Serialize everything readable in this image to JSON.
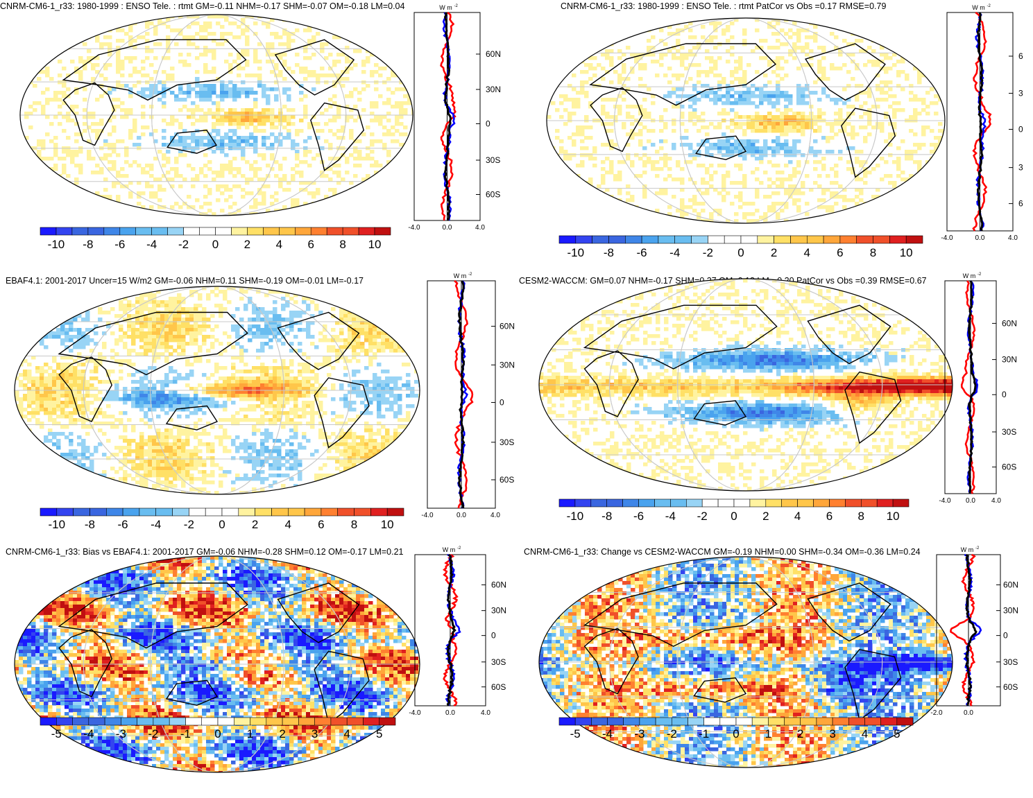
{
  "chart_data": [
    {
      "type": "heatmap",
      "title": "CNRM-CM6-1_r33: 1980-1999 : ENSO Tele. : rtmt GM=-0.11 NHM=-0.17 SHM=-0.07 OM=-0.18 LM=0.04",
      "colorbar_ticks": [
        "-10",
        "-8",
        "-6",
        "-4",
        "-2",
        "0",
        "2",
        "4",
        "6",
        "8",
        "10"
      ],
      "colorbar_range": [
        -10,
        10
      ],
      "zonal_mean": {
        "unit": "W m-2",
        "lat_labels": [
          "60N",
          "30N",
          "0",
          "30S",
          "60S"
        ],
        "x_ticks": [
          "-4.0",
          "0.0",
          "4.0"
        ],
        "xlim": [
          -4,
          4
        ]
      }
    },
    {
      "type": "heatmap",
      "title": "CNRM-CM6-1_r33: 1980-1999 : ENSO Tele. : rtmt PatCor vs Obs =0.17 RMSE=0.79",
      "colorbar_ticks": [
        "-10",
        "-8",
        "-6",
        "-4",
        "-2",
        "0",
        "2",
        "4",
        "6",
        "8",
        "10"
      ],
      "colorbar_range": [
        -10,
        10
      ],
      "zonal_mean": {
        "unit": "W m-2",
        "lat_labels": [
          "6",
          "3",
          "0",
          "3",
          "6"
        ],
        "x_ticks": [
          "-4.0",
          "0.0",
          "4.0"
        ],
        "xlim": [
          -4,
          4
        ]
      }
    },
    {
      "type": "heatmap",
      "title": "EBAF4.1: 2001-2017 Uncer=15 W/m2 GM=-0.06 NHM=0.11 SHM=-0.19 OM=-0.01 LM=-0.17",
      "colorbar_ticks": [
        "-10",
        "-8",
        "-6",
        "-4",
        "-2",
        "0",
        "2",
        "4",
        "6",
        "8",
        "10"
      ],
      "colorbar_range": [
        -10,
        10
      ],
      "zonal_mean": {
        "unit": "W m-2",
        "lat_labels": [
          "60N",
          "30N",
          "0",
          "30S",
          "60S"
        ],
        "x_ticks": [
          "-4.0",
          "0.0",
          "4.0"
        ],
        "xlim": [
          -4,
          4
        ]
      }
    },
    {
      "type": "heatmap",
      "title": "CESM2-WACCM: GM=0.07 NHM=-0.17 SHM=0.27 OM=0.18 LM=-0.20 PatCor vs Obs =0.39 RMSE=0.67",
      "colorbar_ticks": [
        "-10",
        "-8",
        "-6",
        "-4",
        "-2",
        "0",
        "2",
        "4",
        "6",
        "8",
        "10"
      ],
      "colorbar_range": [
        -10,
        10
      ],
      "zonal_mean": {
        "unit": "W m-2",
        "lat_labels": [
          "60N",
          "30N",
          "0",
          "30S",
          "60S"
        ],
        "x_ticks": [
          "-4.0",
          "0.0",
          "4.0"
        ],
        "xlim": [
          -4,
          4
        ]
      }
    },
    {
      "type": "heatmap",
      "title": "CNRM-CM6-1_r33: Bias vs EBAF4.1: 2001-2017 GM=-0.06 NHM=-0.28 SHM=0.12 OM=-0.17 LM=0.21",
      "colorbar_ticks": [
        "-5",
        "-4",
        "-3",
        "-2",
        "-1",
        "0",
        "1",
        "2",
        "3",
        "4",
        "5"
      ],
      "colorbar_range": [
        -5,
        5
      ],
      "zonal_mean": {
        "unit": "W m-2",
        "lat_labels": [
          "60N",
          "30N",
          "0",
          "30S",
          "60S"
        ],
        "x_ticks": [
          "-4.0",
          "0.0",
          "4.0"
        ],
        "xlim": [
          -4,
          4
        ]
      }
    },
    {
      "type": "heatmap",
      "title": "CNRM-CM6-1_r33: Change vs CESM2-WACCM GM=-0.19 NHM=0.00 SHM=-0.34 OM=-0.36 LM=0.24",
      "colorbar_ticks": [
        "-5",
        "-4",
        "-3",
        "-2",
        "-1",
        "0",
        "1",
        "2",
        "3",
        "4",
        "5"
      ],
      "colorbar_range": [
        -5,
        5
      ],
      "zonal_mean": {
        "unit": "W m-2",
        "lat_labels": [
          "60N",
          "30N",
          "0",
          "30S",
          "60S"
        ],
        "x_ticks": [
          "-2.0",
          "0.0"
        ],
        "xlim": [
          -2,
          2
        ]
      }
    }
  ],
  "colors": {
    "palette": [
      "#1a1aff",
      "#3344f0",
      "#3a66e0",
      "#3f86e8",
      "#4aa3ee",
      "#69bdf0",
      "#98d4f5",
      "#ffffff",
      "#ffffff",
      "#fff3a0",
      "#ffe066",
      "#ffc64a",
      "#ffa63a",
      "#ff8030",
      "#f0502a",
      "#e02020",
      "#c01010"
    ],
    "series_obs": "#0000ff",
    "series_model": "#ff0000",
    "series_mean": "#000000"
  }
}
